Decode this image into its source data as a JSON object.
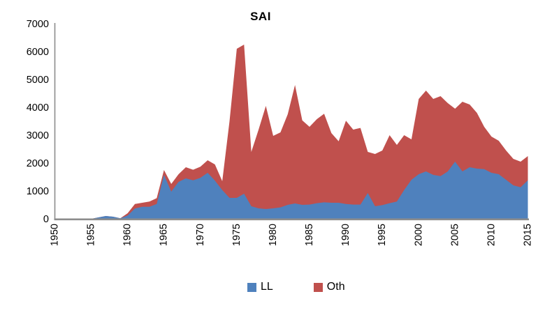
{
  "title": "SAI",
  "colors": {
    "ll_blue": "#4F81BD",
    "oth_red": "#C0504D",
    "axis_gray": "#8C8C8C",
    "text_black": "#000000",
    "background": "#FFFFFF"
  },
  "legend": {
    "items": [
      {
        "label": "LL",
        "color": "#4F81BD"
      },
      {
        "label": "Oth",
        "color": "#C0504D"
      }
    ]
  },
  "chart_data": {
    "type": "area",
    "stacked": true,
    "title": "SAI",
    "xlabel": "",
    "ylabel": "",
    "grid": false,
    "legend_position": "bottom-center",
    "x_start": 1950,
    "x_end": 2015,
    "x": [
      1950,
      1951,
      1952,
      1953,
      1954,
      1955,
      1956,
      1957,
      1958,
      1959,
      1960,
      1961,
      1962,
      1963,
      1964,
      1965,
      1966,
      1967,
      1968,
      1969,
      1970,
      1971,
      1972,
      1973,
      1974,
      1975,
      1976,
      1977,
      1978,
      1979,
      1980,
      1981,
      1982,
      1983,
      1984,
      1985,
      1986,
      1987,
      1988,
      1989,
      1990,
      1991,
      1992,
      1993,
      1994,
      1995,
      1996,
      1997,
      1998,
      1999,
      2000,
      2001,
      2002,
      2003,
      2004,
      2005,
      2006,
      2007,
      2008,
      2009,
      2010,
      2011,
      2012,
      2013,
      2014,
      2015
    ],
    "xticks": [
      1950,
      1955,
      1960,
      1965,
      1970,
      1975,
      1980,
      1985,
      1990,
      1995,
      2000,
      2005,
      2010,
      2015
    ],
    "ylim": [
      0,
      7000
    ],
    "ytick_step": 1000,
    "yticks": [
      0,
      1000,
      2000,
      3000,
      4000,
      5000,
      6000,
      7000
    ],
    "series": [
      {
        "name": "LL",
        "color": "#4F81BD",
        "values": [
          0,
          0,
          0,
          0,
          0,
          0,
          50,
          100,
          75,
          20,
          120,
          370,
          430,
          430,
          530,
          1575,
          975,
          1325,
          1450,
          1380,
          1470,
          1650,
          1370,
          1030,
          750,
          750,
          900,
          450,
          375,
          350,
          375,
          410,
          500,
          550,
          500,
          510,
          560,
          590,
          575,
          575,
          530,
          510,
          510,
          925,
          450,
          490,
          560,
          620,
          1030,
          1400,
          1600,
          1700,
          1575,
          1530,
          1700,
          2050,
          1700,
          1850,
          1800,
          1780,
          1650,
          1600,
          1400,
          1200,
          1130,
          1380
        ]
      },
      {
        "name": "Oth",
        "color": "#C0504D",
        "values": [
          0,
          0,
          0,
          0,
          0,
          0,
          0,
          0,
          0,
          0,
          80,
          160,
          145,
          190,
          210,
          175,
          275,
          275,
          400,
          380,
          400,
          450,
          580,
          320,
          2750,
          5350,
          5350,
          1950,
          2825,
          3700,
          2600,
          2690,
          3250,
          4250,
          3030,
          2790,
          3015,
          3180,
          2500,
          2205,
          2990,
          2690,
          2750,
          1475,
          1875,
          1960,
          2440,
          2030,
          1970,
          1450,
          2700,
          2900,
          2725,
          2870,
          2450,
          1900,
          2500,
          2250,
          2000,
          1520,
          1300,
          1200,
          1050,
          950,
          920,
          870
        ]
      }
    ]
  }
}
